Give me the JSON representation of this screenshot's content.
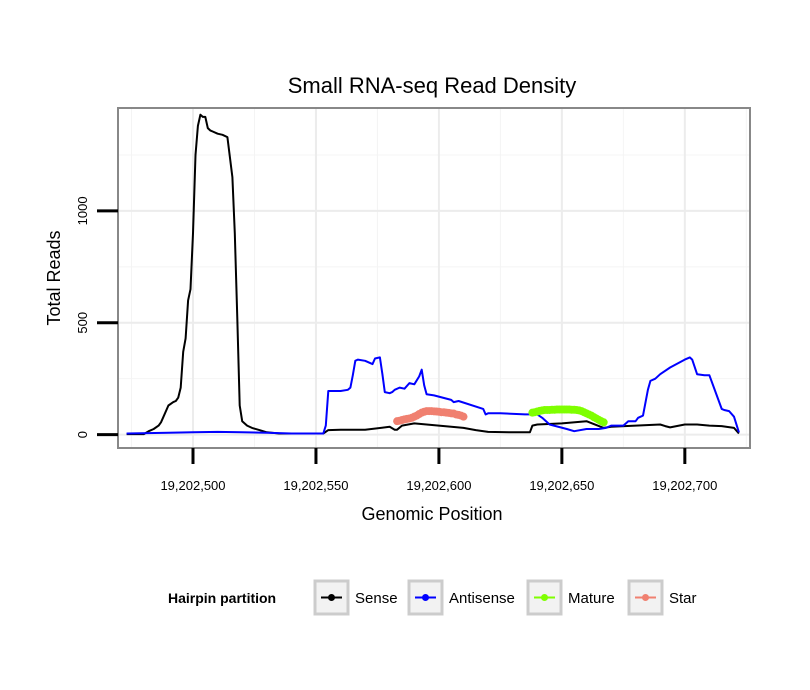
{
  "chart_data": {
    "type": "line",
    "title": "Small RNA-seq Read Density",
    "xlabel": "Genomic Position",
    "ylabel": "Total Reads",
    "xlim": [
      19202469.5,
      19202726.5
    ],
    "ylim": [
      -60,
      1460
    ],
    "x_ticks": [
      {
        "value": 19202500,
        "label": "19,202,500"
      },
      {
        "value": 19202550,
        "label": "19,202,550"
      },
      {
        "value": 19202600,
        "label": "19,202,600"
      },
      {
        "value": 19202650,
        "label": "19,202,650"
      },
      {
        "value": 19202700,
        "label": "19,202,700"
      }
    ],
    "y_ticks": [
      {
        "value": 0,
        "label": "0"
      },
      {
        "value": 500,
        "label": "500"
      },
      {
        "value": 1000,
        "label": "1000"
      }
    ],
    "grid": true,
    "legend": {
      "title": "Hairpin partition",
      "placement": "bottom"
    },
    "series": [
      {
        "name": "Sense",
        "color": "#000000",
        "style": "line",
        "x": [
          19202473,
          19202480,
          19202482,
          19202484,
          19202486,
          19202487,
          19202488,
          19202490,
          19202492,
          19202493,
          19202494,
          19202495,
          19202496,
          19202497,
          19202498,
          19202499,
          19202500,
          19202501,
          19202502,
          19202503,
          19202504,
          19202505,
          19202506,
          19202507,
          19202508,
          19202510,
          19202512,
          19202514,
          19202516,
          19202517,
          19202518,
          19202519,
          19202520,
          19202522,
          19202524,
          19202527,
          19202530,
          19202535,
          19202540,
          19202547,
          19202553,
          19202555,
          19202560,
          19202570,
          19202580,
          19202582,
          19202583,
          19202585,
          19202590,
          19202600,
          19202610,
          19202615,
          19202620,
          19202630,
          19202637,
          19202638,
          19202640,
          19202650,
          19202660,
          19202667,
          19202670,
          19202680,
          19202690,
          19202692,
          19202694,
          19202700,
          19202705,
          19202710,
          19202715,
          19202720,
          19202722
        ],
        "y": [
          2,
          2,
          15,
          25,
          40,
          55,
          80,
          130,
          145,
          150,
          165,
          210,
          370,
          430,
          600,
          650,
          900,
          1250,
          1380,
          1430,
          1420,
          1420,
          1370,
          1360,
          1355,
          1345,
          1340,
          1330,
          1150,
          900,
          520,
          130,
          60,
          40,
          30,
          20,
          10,
          5,
          5,
          5,
          5,
          20,
          22,
          22,
          35,
          22,
          22,
          40,
          50,
          40,
          30,
          20,
          12,
          10,
          10,
          40,
          45,
          50,
          60,
          30,
          35,
          40,
          45,
          38,
          32,
          45,
          45,
          40,
          38,
          30,
          5
        ]
      },
      {
        "name": "Antisense",
        "color": "#0000ff",
        "style": "line",
        "x": [
          19202473,
          19202490,
          19202500,
          19202510,
          19202520,
          19202530,
          19202540,
          19202553,
          19202554,
          19202555,
          19202560,
          19202563,
          19202564,
          19202565,
          19202566,
          19202567,
          19202570,
          19202573,
          19202574,
          19202576,
          19202577,
          19202578,
          19202580,
          19202581,
          19202582,
          19202584,
          19202586,
          19202588,
          19202590,
          19202592,
          19202593,
          19202594,
          19202595,
          19202598,
          19202605,
          19202606,
          19202608,
          19202618,
          19202619,
          19202620,
          19202625,
          19202635,
          19202638,
          19202639,
          19202640,
          19202642,
          19202645,
          19202652,
          19202655,
          19202660,
          19202665,
          19202668,
          19202670,
          19202675,
          19202677,
          19202680,
          19202681,
          19202682,
          19202683,
          19202685,
          19202686,
          19202688,
          19202690,
          19202694,
          19202700,
          19202702,
          19202703,
          19202705,
          19202708,
          19202710,
          19202715,
          19202716,
          19202718,
          19202720,
          19202722
        ],
        "y": [
          5,
          8,
          10,
          12,
          10,
          8,
          5,
          5,
          40,
          195,
          195,
          200,
          210,
          265,
          330,
          335,
          330,
          315,
          340,
          345,
          270,
          190,
          185,
          190,
          200,
          210,
          205,
          230,
          225,
          260,
          290,
          220,
          180,
          175,
          155,
          145,
          150,
          115,
          90,
          95,
          95,
          90,
          90,
          100,
          90,
          75,
          45,
          25,
          15,
          25,
          25,
          30,
          40,
          40,
          60,
          60,
          75,
          80,
          85,
          200,
          240,
          250,
          270,
          300,
          335,
          345,
          335,
          270,
          265,
          265,
          115,
          110,
          105,
          80,
          10
        ]
      },
      {
        "name": "Mature",
        "color": "#7fff00",
        "style": "points",
        "x": [
          19202638,
          19202639,
          19202640,
          19202641,
          19202642,
          19202643,
          19202644,
          19202645,
          19202646,
          19202647,
          19202648,
          19202649,
          19202650,
          19202651,
          19202652,
          19202653,
          19202654,
          19202655,
          19202656,
          19202657,
          19202658,
          19202659,
          19202660,
          19202661,
          19202662,
          19202663,
          19202664,
          19202665,
          19202666,
          19202667
        ],
        "y": [
          98,
          100,
          103,
          106,
          108,
          110,
          110,
          110,
          111,
          111,
          112,
          112,
          112,
          112,
          112,
          112,
          111,
          111,
          110,
          108,
          105,
          100,
          95,
          90,
          85,
          78,
          72,
          66,
          60,
          55
        ]
      },
      {
        "name": "Star",
        "color": "#f08070",
        "style": "points",
        "x": [
          19202583,
          19202584,
          19202585,
          19202586,
          19202587,
          19202588,
          19202589,
          19202590,
          19202591,
          19202592,
          19202593,
          19202594,
          19202595,
          19202596,
          19202597,
          19202598,
          19202599,
          19202600,
          19202601,
          19202602,
          19202603,
          19202604,
          19202605,
          19202606,
          19202607,
          19202608,
          19202609,
          19202610
        ],
        "y": [
          60,
          62,
          65,
          68,
          70,
          72,
          75,
          80,
          85,
          92,
          98,
          102,
          105,
          105,
          105,
          104,
          103,
          102,
          100,
          100,
          98,
          97,
          95,
          94,
          90,
          88,
          85,
          80
        ]
      }
    ]
  }
}
